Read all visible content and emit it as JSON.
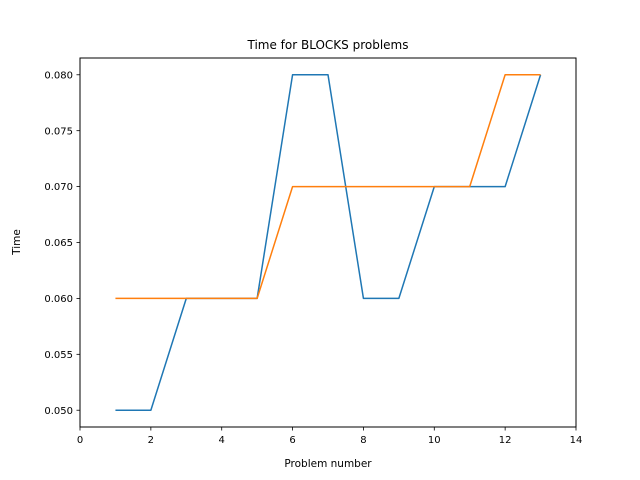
{
  "chart_data": {
    "type": "line",
    "title": "Time for BLOCKS problems",
    "xlabel": "Problem number",
    "ylabel": "Time",
    "xlim": [
      0,
      14
    ],
    "ylim": [
      0.0485,
      0.0815
    ],
    "xticks": [
      0,
      2,
      4,
      6,
      8,
      10,
      12,
      14
    ],
    "xtick_labels": [
      "0",
      "2",
      "4",
      "6",
      "8",
      "10",
      "12",
      "14"
    ],
    "yticks": [
      0.05,
      0.055,
      0.06,
      0.065,
      0.07,
      0.075,
      0.08
    ],
    "ytick_labels": [
      "0.050",
      "0.055",
      "0.060",
      "0.065",
      "0.070",
      "0.075",
      "0.080"
    ],
    "grid": false,
    "x": [
      1,
      2,
      3,
      4,
      5,
      6,
      7,
      8,
      9,
      10,
      11,
      12,
      13
    ],
    "series": [
      {
        "color": "#1f77b4",
        "values": [
          0.05,
          0.05,
          0.06,
          0.06,
          0.06,
          0.08,
          0.08,
          0.06,
          0.06,
          0.07,
          0.07,
          0.07,
          0.08
        ]
      },
      {
        "color": "#ff7f0e",
        "values": [
          0.06,
          0.06,
          0.06,
          0.06,
          0.06,
          0.07,
          0.07,
          0.07,
          0.07,
          0.07,
          0.07,
          0.08,
          0.08
        ]
      }
    ]
  }
}
